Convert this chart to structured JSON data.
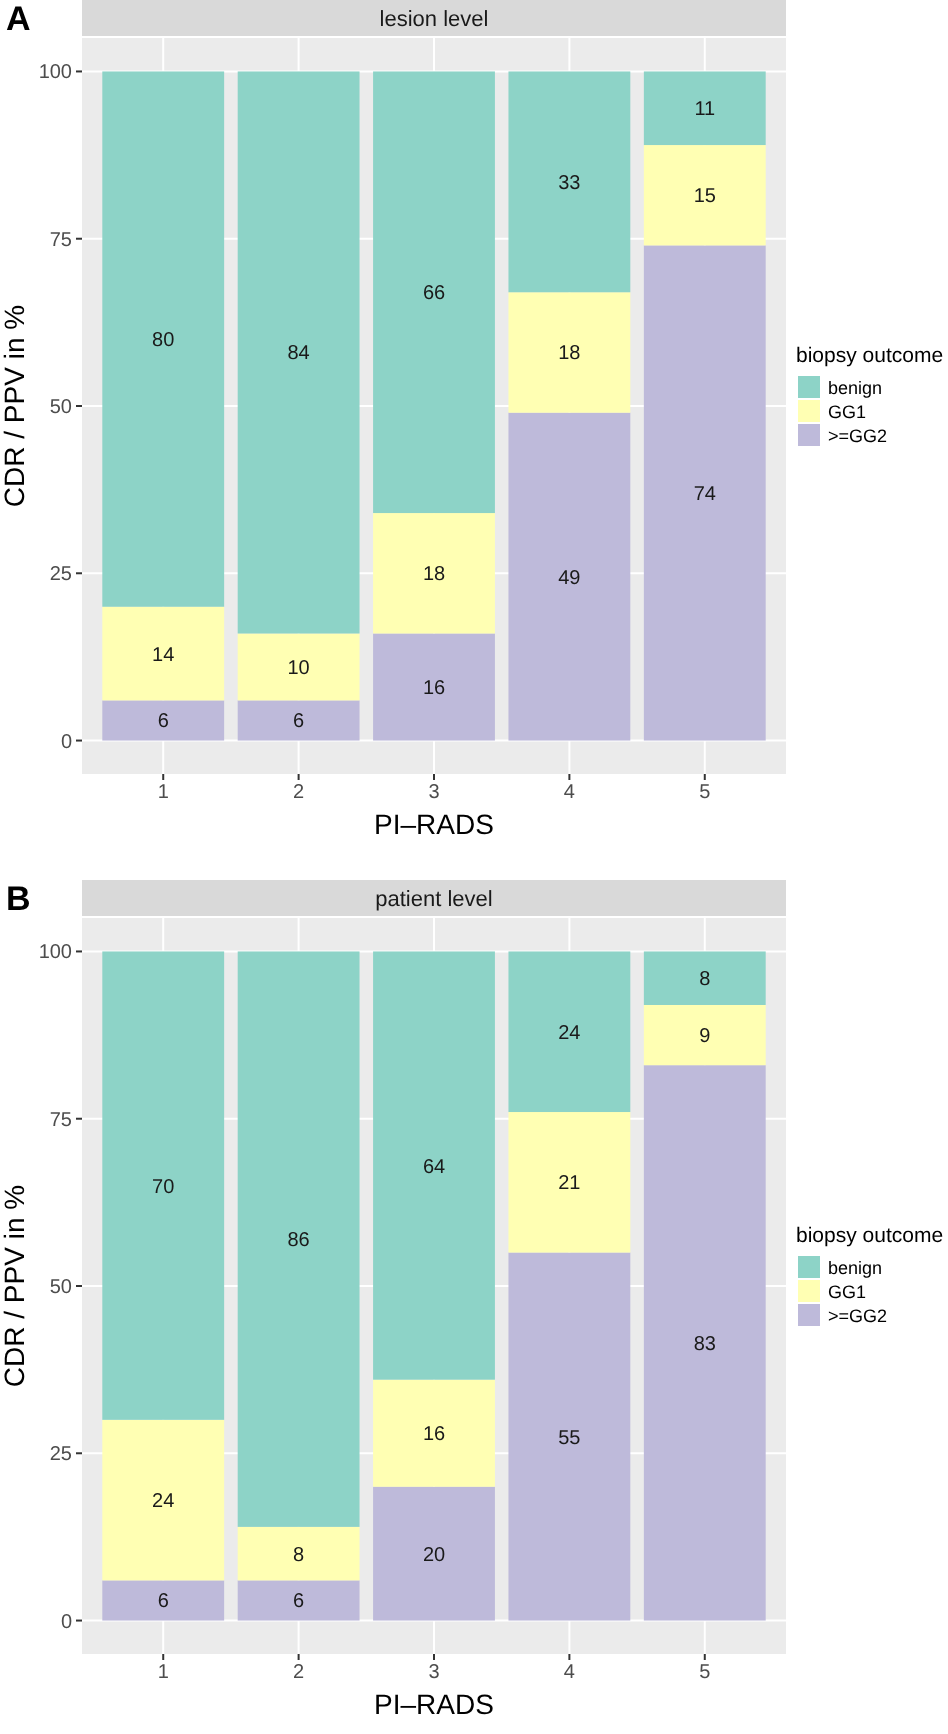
{
  "chart_data": [
    {
      "type": "bar",
      "title": "lesion level",
      "annotations": [
        "A"
      ],
      "xlabel": "PI–RADS",
      "ylabel": "CDR / PPV in %",
      "legend_title": "biopsy outcome",
      "categories": [
        "1",
        "2",
        "3",
        "4",
        "5"
      ],
      "stacked": true,
      "data_labels": true,
      "ylim": [
        -5,
        105
      ],
      "yticks": [
        0,
        25,
        50,
        75,
        100
      ],
      "grid": true,
      "legend": "right",
      "series": [
        {
          "name": ">=GG2",
          "color": "#bebada",
          "values": [
            6,
            6,
            16,
            49,
            74
          ]
        },
        {
          "name": "GG1",
          "color": "#ffffb3",
          "values": [
            14,
            10,
            18,
            18,
            15
          ]
        },
        {
          "name": "benign",
          "color": "#8dd3c7",
          "values": [
            80,
            84,
            66,
            33,
            11
          ]
        }
      ]
    },
    {
      "type": "bar",
      "title": "patient level",
      "annotations": [
        "B"
      ],
      "xlabel": "PI–RADS",
      "ylabel": "CDR / PPV in %",
      "legend_title": "biopsy outcome",
      "categories": [
        "1",
        "2",
        "3",
        "4",
        "5"
      ],
      "stacked": true,
      "data_labels": true,
      "ylim": [
        -5,
        105
      ],
      "yticks": [
        0,
        25,
        50,
        75,
        100
      ],
      "grid": true,
      "legend": "right",
      "series": [
        {
          "name": ">=GG2",
          "color": "#bebada",
          "values": [
            6,
            6,
            20,
            55,
            83
          ]
        },
        {
          "name": "GG1",
          "color": "#ffffb3",
          "values": [
            24,
            8,
            16,
            21,
            9
          ]
        },
        {
          "name": "benign",
          "color": "#8dd3c7",
          "values": [
            70,
            86,
            64,
            24,
            8
          ]
        }
      ]
    }
  ]
}
